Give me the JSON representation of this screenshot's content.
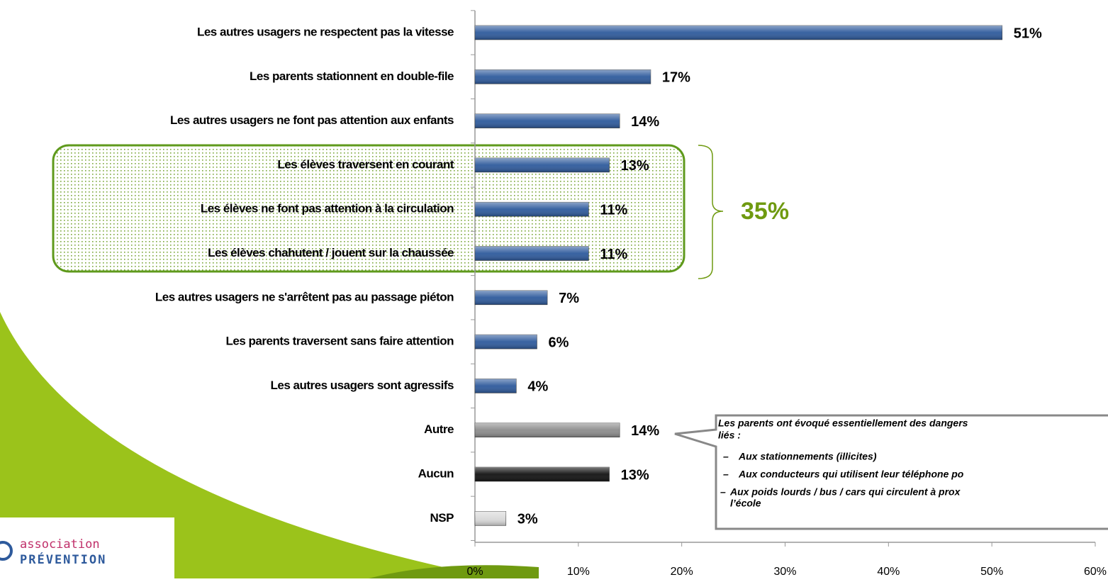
{
  "chart_data": {
    "type": "bar",
    "orientation": "horizontal",
    "categories": [
      "Les autres usagers ne respectent pas la vitesse",
      "Les parents stationnent en double-file",
      "Les autres usagers ne font pas attention aux enfants",
      "Les élèves traversent en courant",
      "Les élèves ne font pas attention à la circulation",
      "Les élèves chahutent / jouent sur la chaussée",
      "Les autres usagers ne s'arrêtent pas au passage piéton",
      "Les parents traversent sans faire attention",
      "Les autres usagers sont agressifs",
      "Autre",
      "Aucun",
      "NSP"
    ],
    "values": [
      51,
      17,
      14,
      13,
      11,
      11,
      7,
      6,
      4,
      14,
      13,
      3
    ],
    "value_labels": [
      "51%",
      "17%",
      "14%",
      "13%",
      "11%",
      "11%",
      "7%",
      "6%",
      "4%",
      "14%",
      "13%",
      "3%"
    ],
    "colors": [
      "#2e5a9c",
      "#2e5a9c",
      "#2e5a9c",
      "#2e5a9c",
      "#2e5a9c",
      "#2e5a9c",
      "#2e5a9c",
      "#2e5a9c",
      "#2e5a9c",
      "#8c8c8c",
      "#111111",
      "#d9d9d9"
    ],
    "xlim": [
      0,
      60
    ],
    "xticks": [
      {
        "value": 0,
        "label": "0%"
      },
      {
        "value": 10,
        "label": "10%"
      },
      {
        "value": 20,
        "label": "20%"
      },
      {
        "value": 30,
        "label": "30%"
      },
      {
        "value": 40,
        "label": "40%"
      },
      {
        "value": 50,
        "label": "50%"
      },
      {
        "value": 60,
        "label": "60%"
      }
    ],
    "group_annotation": "35%",
    "callout": {
      "title": [
        "Les parents ont évoqué essentiellement  des dangers",
        "liés :"
      ],
      "items": [
        "Aux stationnements (illicites)",
        "Aux conducteurs qui utilisent leur téléphone po",
        "Aux poids lourds / bus / cars  qui circulent  à prox",
        "l’école"
      ]
    },
    "logo": [
      "association",
      "PRÉVENTION"
    ]
  }
}
